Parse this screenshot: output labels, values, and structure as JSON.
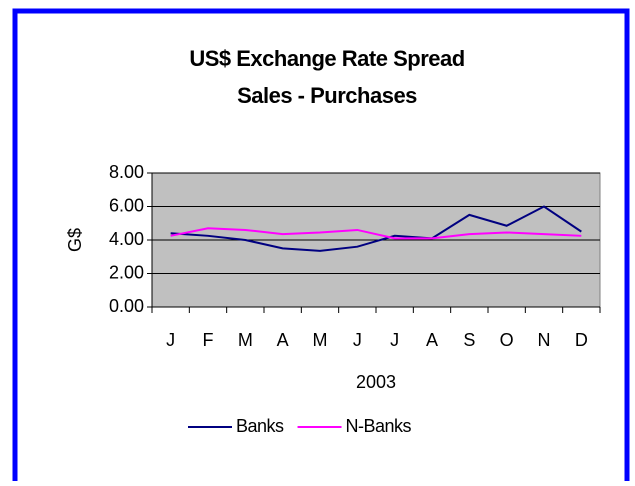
{
  "chart_data": {
    "type": "line",
    "title": "US$ Exchange Rate Spread",
    "subtitle": "Sales - Purchases",
    "xlabel": "2003",
    "ylabel": "G$",
    "categories": [
      "J",
      "F",
      "M",
      "A",
      "M",
      "J",
      "J",
      "A",
      "S",
      "O",
      "N",
      "D"
    ],
    "series": [
      {
        "name": "Banks",
        "color": "#000080",
        "values": [
          4.4,
          4.25,
          4.0,
          3.5,
          3.35,
          3.6,
          4.25,
          4.1,
          5.5,
          4.85,
          6.0,
          4.5
        ]
      },
      {
        "name": "N-Banks",
        "color": "#ff00ff",
        "values": [
          4.25,
          4.7,
          4.6,
          4.35,
          4.45,
          4.6,
          4.1,
          4.1,
          4.35,
          4.45,
          4.35,
          4.25
        ]
      }
    ],
    "ylim": [
      0,
      8
    ],
    "yticks": [
      {
        "value": 0,
        "label": "0.00"
      },
      {
        "value": 2,
        "label": "2.00"
      },
      {
        "value": 4,
        "label": "4.00"
      },
      {
        "value": 6,
        "label": "6.00"
      },
      {
        "value": 8,
        "label": "8.00"
      }
    ],
    "grid": true,
    "legend": "bottom"
  }
}
